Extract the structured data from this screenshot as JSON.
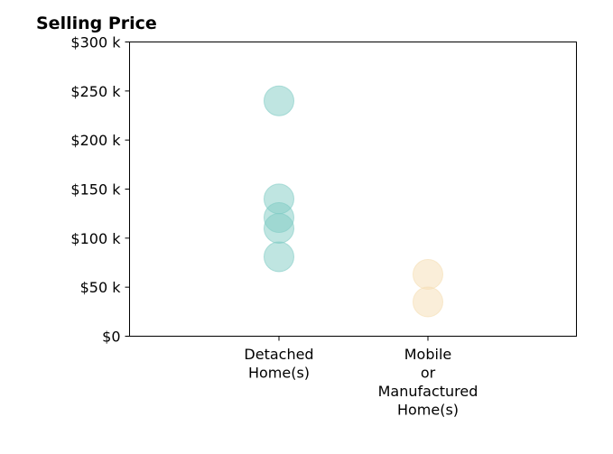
{
  "chart_data": {
    "type": "scatter",
    "title": "Selling Price",
    "xlabel": "",
    "ylabel": "",
    "categories": [
      [
        "Detached",
        "Home(s)"
      ],
      [
        "Mobile",
        "or",
        "Manufactured",
        "Home(s)"
      ]
    ],
    "ylim": [
      0,
      300000
    ],
    "yticks": [
      {
        "value": 0,
        "label": "$0"
      },
      {
        "value": 50000,
        "label": "$50 k"
      },
      {
        "value": 100000,
        "label": "$100 k"
      },
      {
        "value": 150000,
        "label": "$150 k"
      },
      {
        "value": 200000,
        "label": "$200 k"
      },
      {
        "value": 250000,
        "label": "$250 k"
      },
      {
        "value": 300000,
        "label": "$300 k"
      }
    ],
    "series": [
      {
        "category_index": 0,
        "color": "#80cbc4",
        "values": [
          240000,
          140000,
          121000,
          110000,
          81000
        ]
      },
      {
        "category_index": 1,
        "color": "#f5deb3",
        "values": [
          63000,
          35000
        ]
      }
    ],
    "grid": false,
    "legend": "none"
  }
}
